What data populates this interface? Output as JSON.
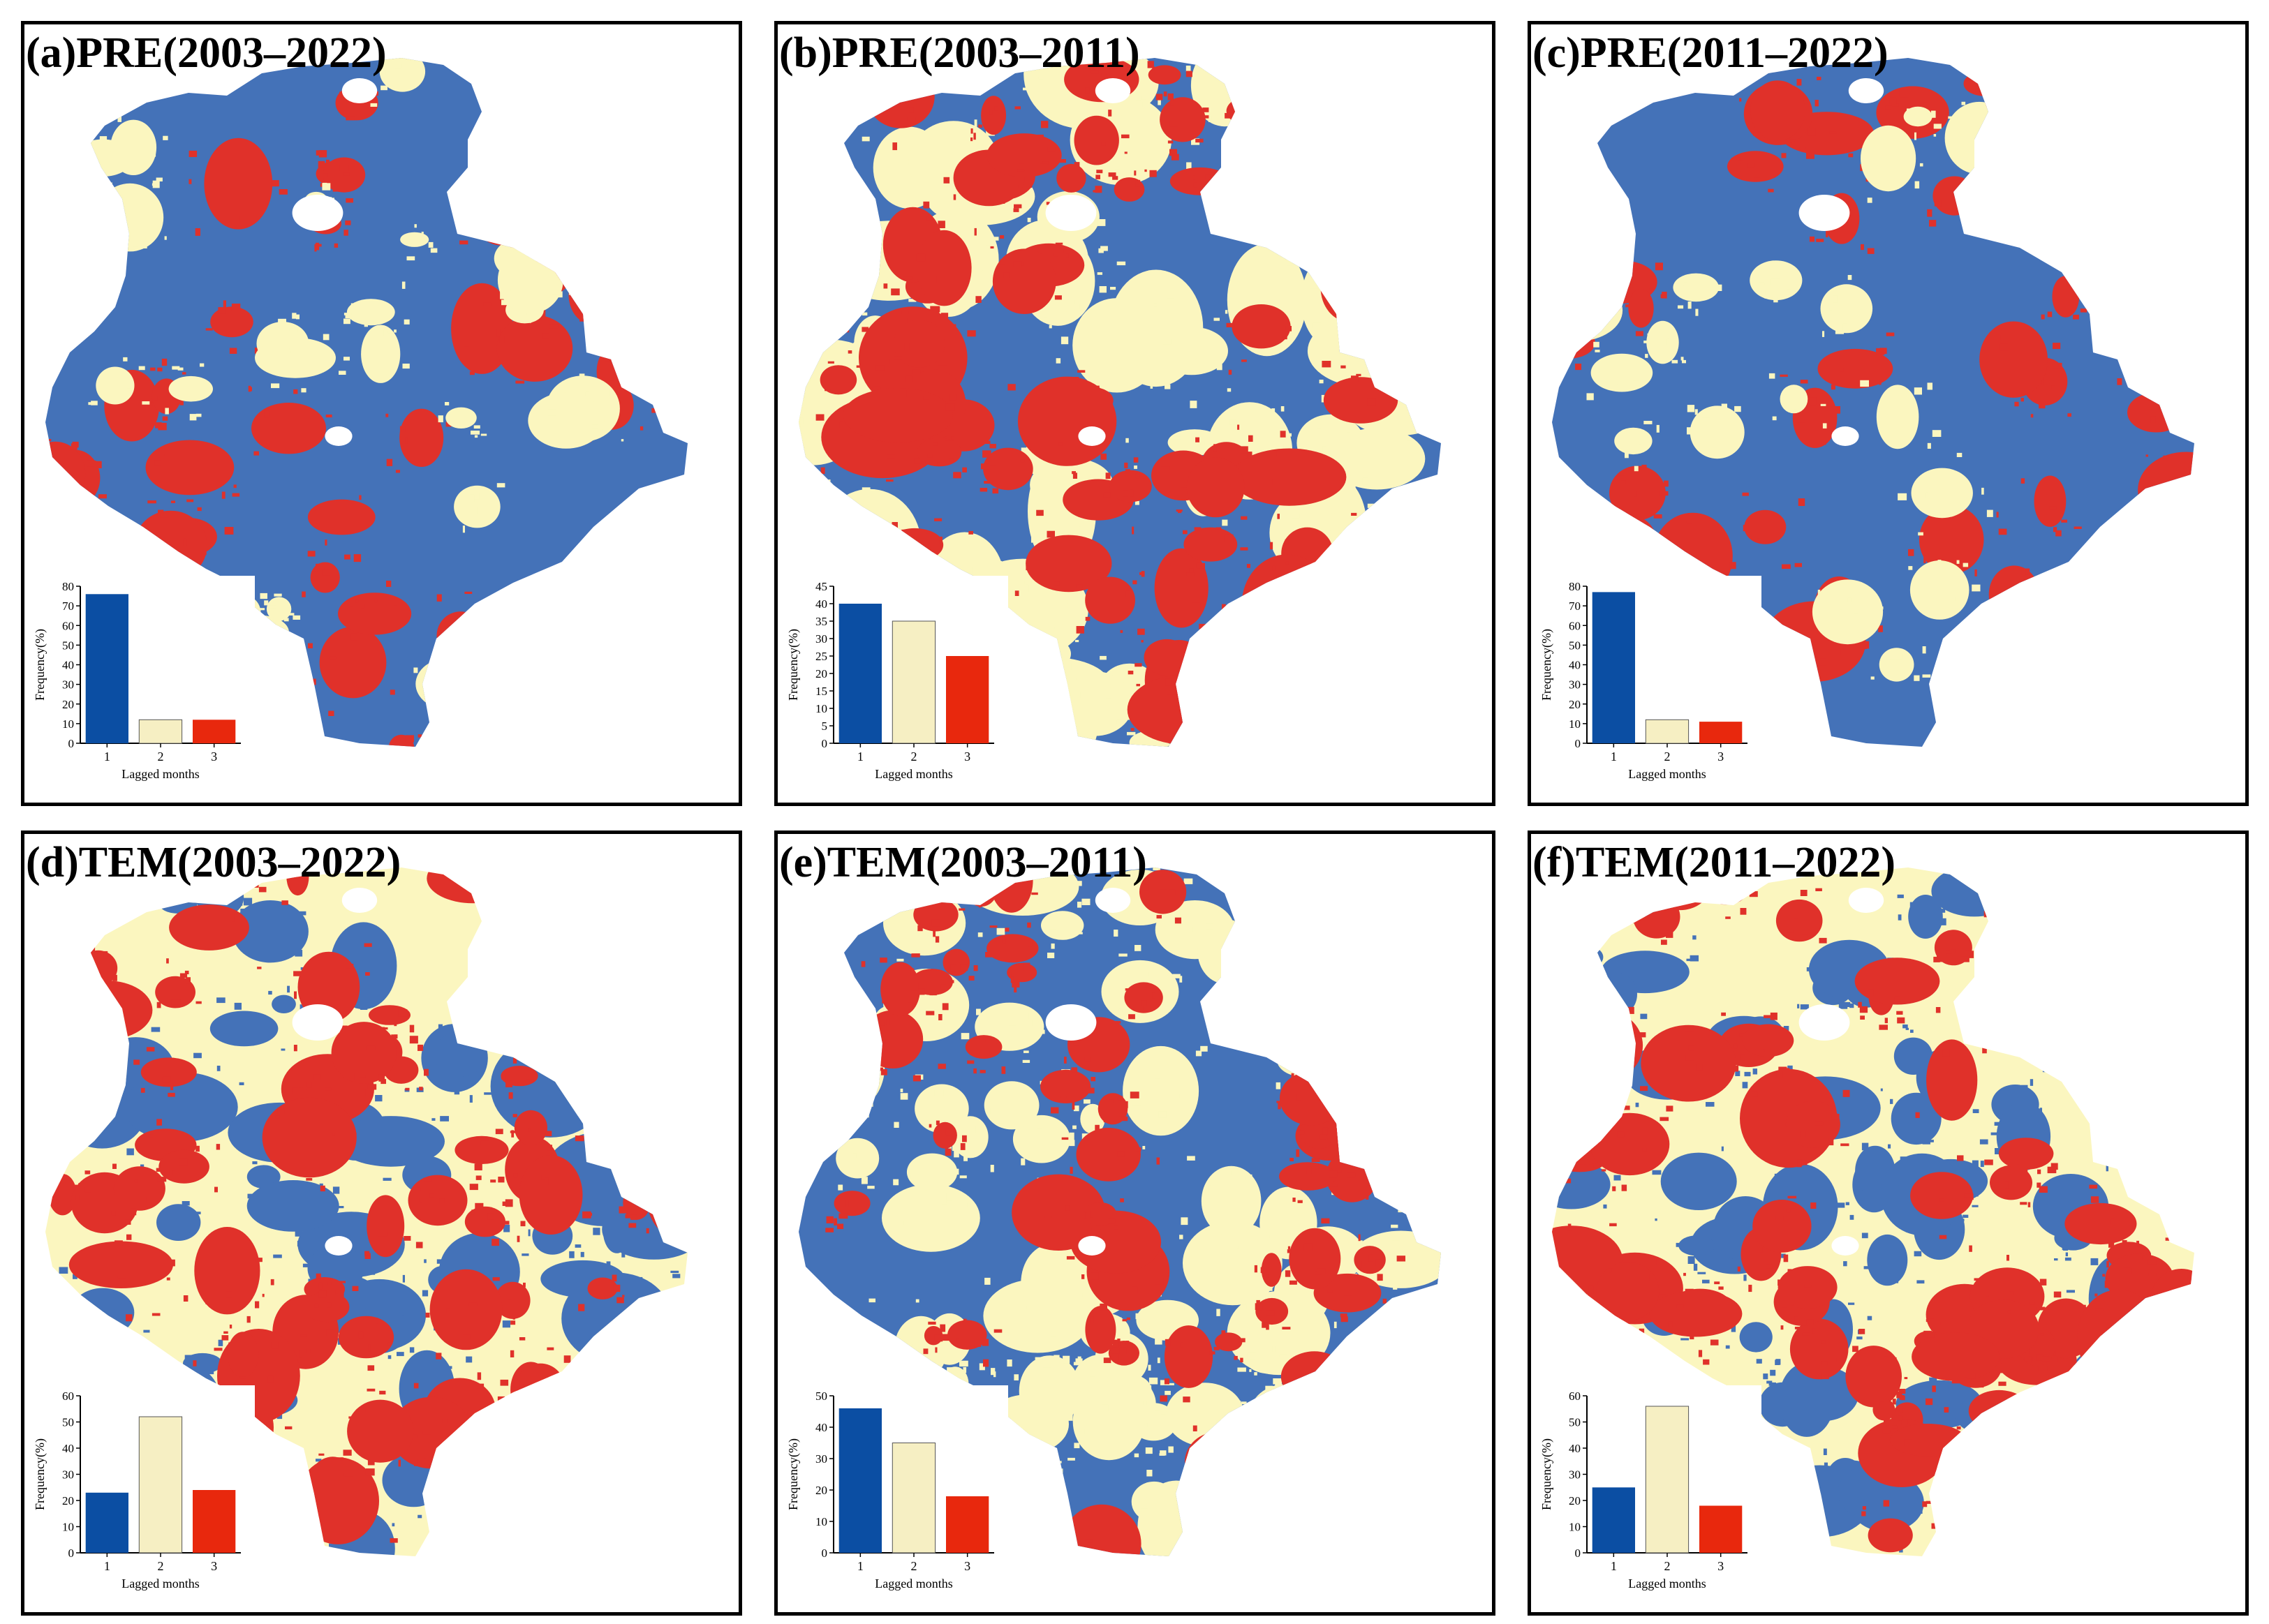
{
  "colors": {
    "lag1": "#4472b8",
    "lag2": "#fbf6bf",
    "lag3": "#e0312a",
    "bar1": "#0b4ea3",
    "bar2": "#f6efc3",
    "bar3": "#e8280d"
  },
  "panels": [
    {
      "id": "a",
      "title": "(a)PRE(2003–2022)",
      "dominant": "lag1",
      "chart_data": {
        "type": "bar",
        "categories": [
          "1",
          "2",
          "3"
        ],
        "values": [
          76,
          12,
          12
        ],
        "xlabel": "Lagged months",
        "ylabel": "Frequency(%)",
        "ylim": [
          0,
          80
        ],
        "yticks": [
          0,
          10,
          20,
          30,
          40,
          50,
          60,
          70,
          80
        ]
      }
    },
    {
      "id": "b",
      "title": "(b)PRE(2003–2011)",
      "dominant": "mixed",
      "chart_data": {
        "type": "bar",
        "categories": [
          "1",
          "2",
          "3"
        ],
        "values": [
          40,
          35,
          25
        ],
        "xlabel": "Lagged months",
        "ylabel": "Frequency(%)",
        "ylim": [
          0,
          45
        ],
        "yticks": [
          0,
          5,
          10,
          15,
          20,
          25,
          30,
          35,
          40,
          45
        ]
      }
    },
    {
      "id": "c",
      "title": "(c)PRE(2011–2022)",
      "dominant": "lag1",
      "chart_data": {
        "type": "bar",
        "categories": [
          "1",
          "2",
          "3"
        ],
        "values": [
          77,
          12,
          11
        ],
        "xlabel": "Lagged months",
        "ylabel": "Frequency(%)",
        "ylim": [
          0,
          80
        ],
        "yticks": [
          0,
          10,
          20,
          30,
          40,
          50,
          60,
          70,
          80
        ]
      }
    },
    {
      "id": "d",
      "title": "(d)TEM(2003–2022)",
      "dominant": "lag2",
      "chart_data": {
        "type": "bar",
        "categories": [
          "1",
          "2",
          "3"
        ],
        "values": [
          23,
          52,
          24
        ],
        "xlabel": "Lagged months",
        "ylabel": "Frequency(%)",
        "ylim": [
          0,
          60
        ],
        "yticks": [
          0,
          10,
          20,
          30,
          40,
          50,
          60
        ]
      }
    },
    {
      "id": "e",
      "title": "(e)TEM(2003–2011)",
      "dominant": "mixed2",
      "chart_data": {
        "type": "bar",
        "categories": [
          "1",
          "2",
          "3"
        ],
        "values": [
          46,
          35,
          18
        ],
        "xlabel": "Lagged months",
        "ylabel": "Frequency(%)",
        "ylim": [
          0,
          50
        ],
        "yticks": [
          0,
          10,
          20,
          30,
          40,
          50
        ]
      }
    },
    {
      "id": "f",
      "title": "(f)TEM(2011–2022)",
      "dominant": "lag2",
      "chart_data": {
        "type": "bar",
        "categories": [
          "1",
          "2",
          "3"
        ],
        "values": [
          25,
          56,
          18
        ],
        "xlabel": "Lagged months",
        "ylabel": "Frequency(%)",
        "ylim": [
          0,
          60
        ],
        "yticks": [
          0,
          10,
          20,
          30,
          40,
          50,
          60
        ]
      }
    }
  ]
}
